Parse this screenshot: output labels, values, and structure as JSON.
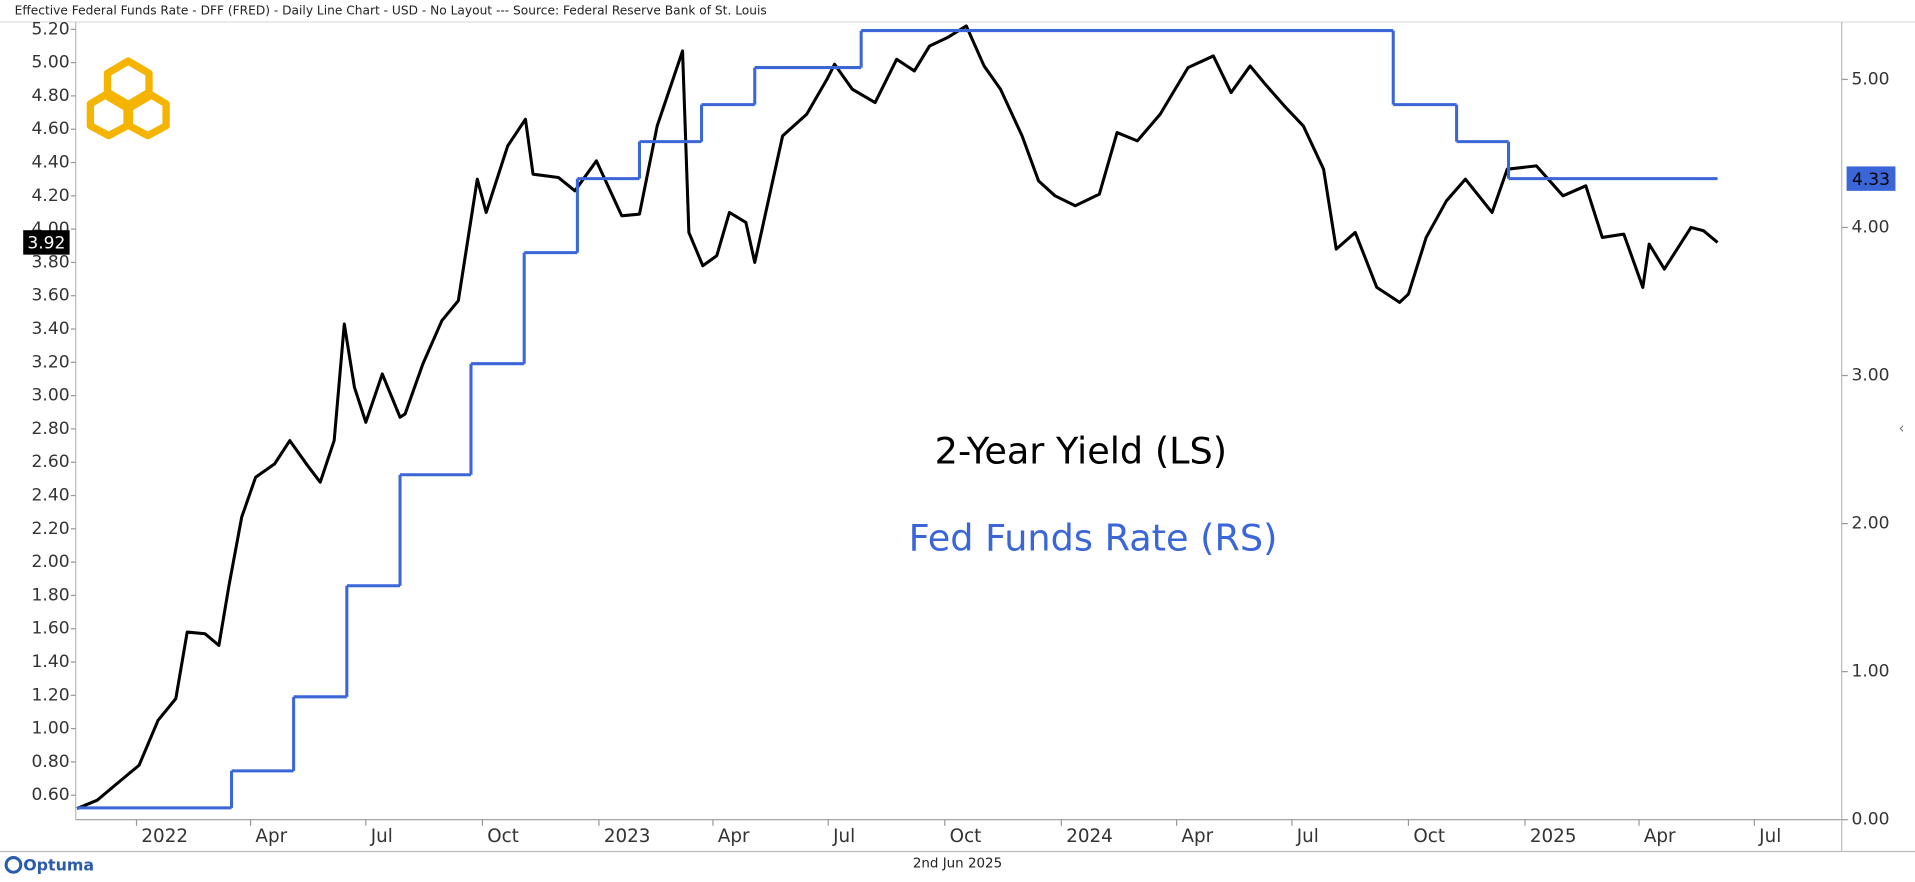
{
  "chart_data": {
    "type": "line",
    "title": "Effective Federal Funds Rate - DFF (FRED) - Daily Line Chart - USD - No Layout --- Source: Federal Reserve Bank of St. Louis",
    "date_label": "2nd Jun 2025",
    "brand": "Optuma",
    "xlim": [
      "2021-11-14",
      "2025-09-08"
    ],
    "xticks": [
      {
        "value": "2022-01-01",
        "label": "2022"
      },
      {
        "value": "2022-04-01",
        "label": "Apr"
      },
      {
        "value": "2022-07-01",
        "label": "Jul"
      },
      {
        "value": "2022-10-01",
        "label": "Oct"
      },
      {
        "value": "2023-01-01",
        "label": "2023"
      },
      {
        "value": "2023-04-01",
        "label": "Apr"
      },
      {
        "value": "2023-07-01",
        "label": "Jul"
      },
      {
        "value": "2023-10-01",
        "label": "Oct"
      },
      {
        "value": "2024-01-01",
        "label": "2024"
      },
      {
        "value": "2024-04-01",
        "label": "Apr"
      },
      {
        "value": "2024-07-01",
        "label": "Jul"
      },
      {
        "value": "2024-10-01",
        "label": "Oct"
      },
      {
        "value": "2025-01-01",
        "label": "2025"
      },
      {
        "value": "2025-04-01",
        "label": "Apr"
      },
      {
        "value": "2025-07-01",
        "label": "Jul"
      }
    ],
    "ylim": [
      0.453,
      5.244
    ],
    "yticks": [
      {
        "value": 0.6,
        "label": "0.60"
      },
      {
        "value": 0.8,
        "label": "0.80"
      },
      {
        "value": 1.0,
        "label": "1.00"
      },
      {
        "value": 1.2,
        "label": "1.20"
      },
      {
        "value": 1.4,
        "label": "1.40"
      },
      {
        "value": 1.6,
        "label": "1.60"
      },
      {
        "value": 1.8,
        "label": "1.80"
      },
      {
        "value": 2.0,
        "label": "2.00"
      },
      {
        "value": 2.2,
        "label": "2.20"
      },
      {
        "value": 2.4,
        "label": "2.40"
      },
      {
        "value": 2.6,
        "label": "2.60"
      },
      {
        "value": 2.8,
        "label": "2.80"
      },
      {
        "value": 3.0,
        "label": "3.00"
      },
      {
        "value": 3.2,
        "label": "3.20"
      },
      {
        "value": 3.4,
        "label": "3.40"
      },
      {
        "value": 3.6,
        "label": "3.60"
      },
      {
        "value": 3.8,
        "label": "3.80"
      },
      {
        "value": 4.0,
        "label": "4.00"
      },
      {
        "value": 4.2,
        "label": "4.20"
      },
      {
        "value": 4.4,
        "label": "4.40"
      },
      {
        "value": 4.6,
        "label": "4.60"
      },
      {
        "value": 4.8,
        "label": "4.80"
      },
      {
        "value": 5.0,
        "label": "5.00"
      },
      {
        "value": 5.2,
        "label": "5.20"
      }
    ],
    "y2lim": [
      0,
      5.388
    ],
    "y2ticks": [
      {
        "value": 0,
        "label": "0.00"
      },
      {
        "value": 1,
        "label": "1.00"
      },
      {
        "value": 2,
        "label": "2.00"
      },
      {
        "value": 3,
        "label": "3.00"
      },
      {
        "value": 4,
        "label": "4.00"
      },
      {
        "value": 5,
        "label": "5.00"
      }
    ],
    "grid": false,
    "series": [
      {
        "name": "2-Year Yield (LS)",
        "color": "#000000",
        "axis": "y",
        "drawstyle": "default",
        "x": [
          "2021-11-15",
          "2021-12-01",
          "2021-12-15",
          "2022-01-03",
          "2022-01-18",
          "2022-02-01",
          "2022-02-10",
          "2022-02-24",
          "2022-03-07",
          "2022-03-15",
          "2022-03-25",
          "2022-04-05",
          "2022-04-20",
          "2022-05-02",
          "2022-05-16",
          "2022-05-26",
          "2022-06-06",
          "2022-06-14",
          "2022-06-22",
          "2022-07-01",
          "2022-07-14",
          "2022-07-28",
          "2022-08-01",
          "2022-08-15",
          "2022-08-30",
          "2022-09-12",
          "2022-09-27",
          "2022-10-04",
          "2022-10-21",
          "2022-11-04",
          "2022-11-10",
          "2022-11-30",
          "2022-12-13",
          "2022-12-30",
          "2023-01-19",
          "2023-02-02",
          "2023-02-16",
          "2023-03-08",
          "2023-03-13",
          "2023-03-24",
          "2023-04-04",
          "2023-04-14",
          "2023-04-27",
          "2023-05-04",
          "2023-05-26",
          "2023-06-14",
          "2023-06-30",
          "2023-07-06",
          "2023-07-20",
          "2023-08-07",
          "2023-08-24",
          "2023-09-07",
          "2023-09-19",
          "2023-10-03",
          "2023-10-18",
          "2023-11-01",
          "2023-11-14",
          "2023-12-01",
          "2023-12-14",
          "2023-12-27",
          "2024-01-12",
          "2024-01-31",
          "2024-02-14",
          "2024-03-01",
          "2024-03-19",
          "2024-04-10",
          "2024-04-30",
          "2024-05-14",
          "2024-05-29",
          "2024-06-10",
          "2024-06-25",
          "2024-07-10",
          "2024-07-26",
          "2024-08-05",
          "2024-08-20",
          "2024-09-06",
          "2024-09-24",
          "2024-10-01",
          "2024-10-15",
          "2024-10-31",
          "2024-11-15",
          "2024-12-06",
          "2024-12-18",
          "2025-01-10",
          "2025-01-31",
          "2025-02-18",
          "2025-03-03",
          "2025-03-20",
          "2025-04-04",
          "2025-04-09",
          "2025-04-21",
          "2025-05-12",
          "2025-05-22",
          "2025-06-02"
        ],
        "values": [
          0.52,
          0.57,
          0.66,
          0.78,
          1.05,
          1.18,
          1.58,
          1.57,
          1.5,
          1.86,
          2.27,
          2.51,
          2.59,
          2.73,
          2.58,
          2.48,
          2.73,
          3.43,
          3.05,
          2.84,
          3.13,
          2.87,
          2.89,
          3.19,
          3.45,
          3.57,
          4.3,
          4.1,
          4.5,
          4.66,
          4.33,
          4.31,
          4.23,
          4.41,
          4.08,
          4.09,
          4.62,
          5.07,
          3.98,
          3.78,
          3.84,
          4.1,
          4.04,
          3.8,
          4.56,
          4.69,
          4.9,
          4.99,
          4.84,
          4.76,
          5.02,
          4.95,
          5.1,
          5.15,
          5.22,
          4.98,
          4.84,
          4.56,
          4.29,
          4.2,
          4.14,
          4.21,
          4.58,
          4.53,
          4.69,
          4.97,
          5.04,
          4.82,
          4.98,
          4.87,
          4.74,
          4.62,
          4.36,
          3.88,
          3.98,
          3.65,
          3.56,
          3.61,
          3.95,
          4.17,
          4.3,
          4.1,
          4.36,
          4.38,
          4.2,
          4.26,
          3.95,
          3.97,
          3.65,
          3.91,
          3.76,
          4.01,
          3.99,
          3.92
        ]
      },
      {
        "name": "Fed Funds Rate (RS)",
        "color": "#3a66d8",
        "axis": "y2",
        "drawstyle": "steps-post",
        "x": [
          "2021-11-15",
          "2022-03-17",
          "2022-05-05",
          "2022-06-16",
          "2022-07-28",
          "2022-09-22",
          "2022-11-03",
          "2022-12-15",
          "2023-02-02",
          "2023-03-23",
          "2023-05-04",
          "2023-07-27",
          "2024-09-19",
          "2024-11-08",
          "2024-12-19",
          "2025-06-02"
        ],
        "values": [
          0.08,
          0.33,
          0.83,
          1.58,
          2.33,
          3.08,
          3.83,
          4.33,
          4.58,
          4.83,
          5.08,
          5.33,
          4.83,
          4.58,
          4.33,
          4.33
        ]
      }
    ]
  }
}
